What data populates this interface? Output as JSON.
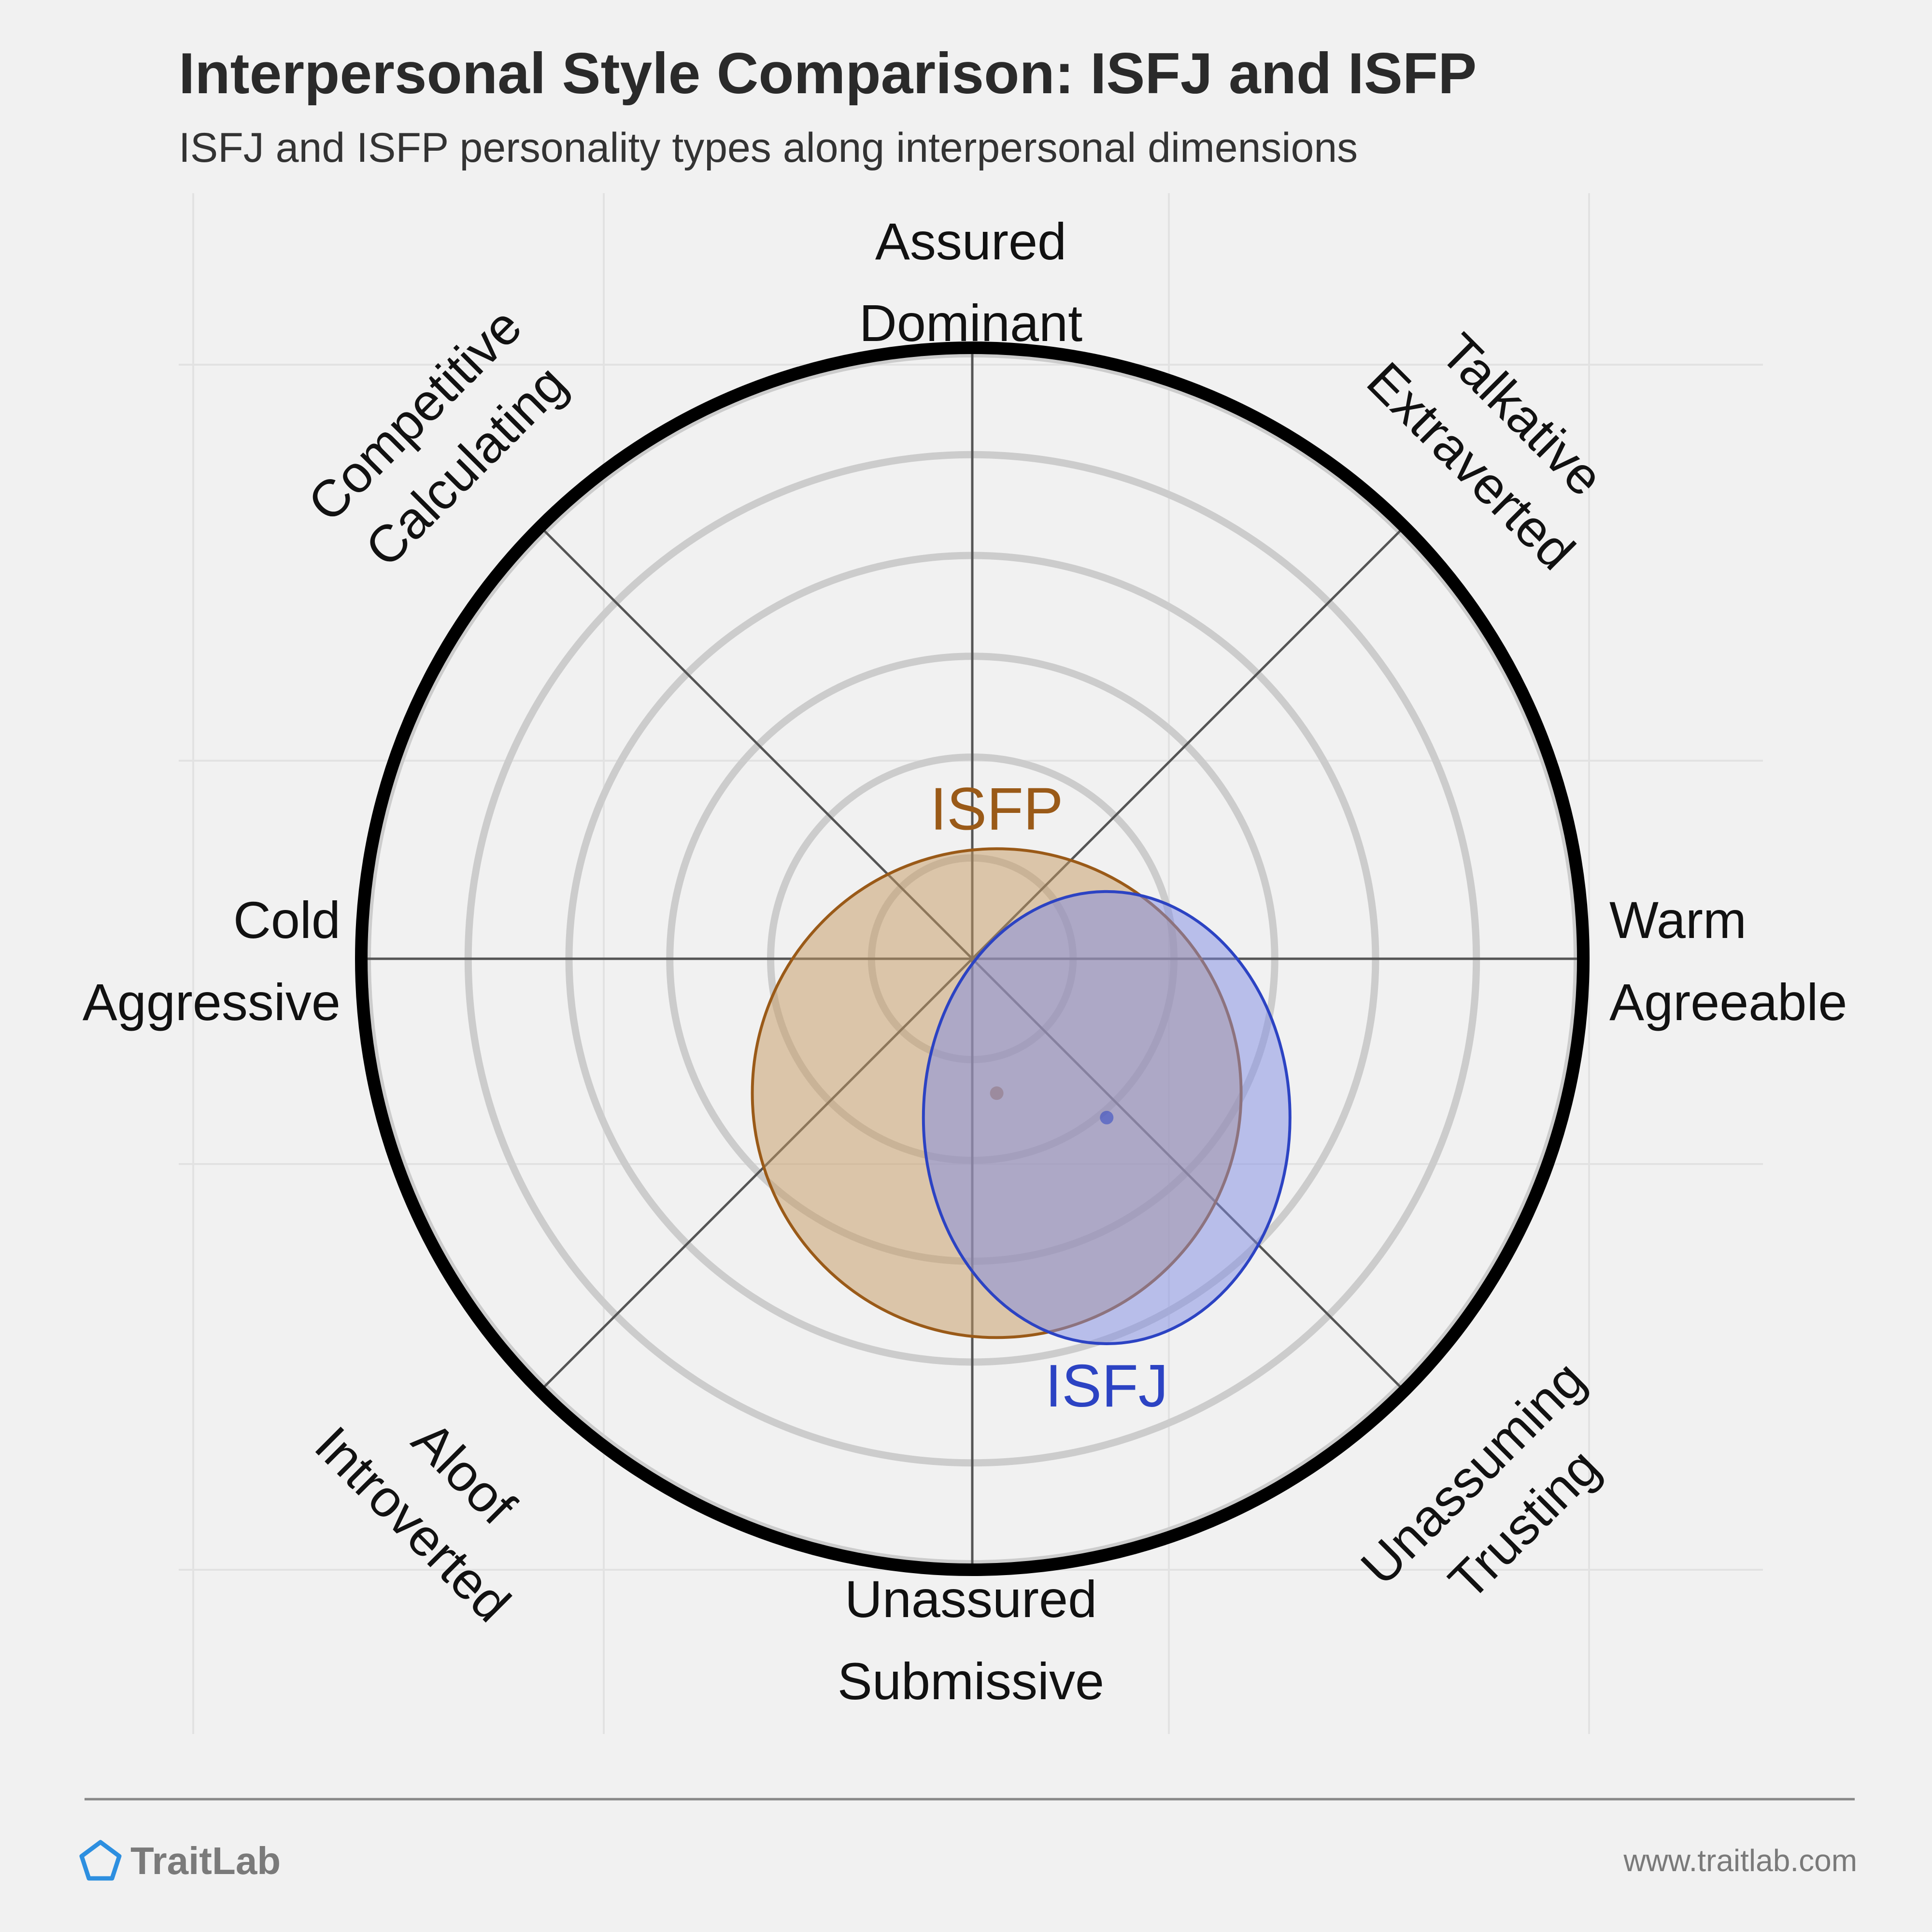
{
  "header": {
    "title": "Interpersonal Style Comparison: ISFJ and ISFP",
    "subtitle": "ISFJ and ISFP personality types along interpersonal dimensions"
  },
  "chart_data": {
    "type": "scatter",
    "subtype": "interpersonal-circumplex",
    "axes": {
      "x": {
        "min": -1,
        "max": 1,
        "negative_label": [
          "Cold",
          "Aggressive"
        ],
        "positive_label": [
          "Warm",
          "Agreeable"
        ]
      },
      "y": {
        "min": -1,
        "max": 1,
        "positive_label": [
          "Assured",
          "Dominant"
        ],
        "negative_label": [
          "Unassured",
          "Submissive"
        ]
      }
    },
    "diagonal_labels": {
      "top_left": [
        "Competitive",
        "Calculating"
      ],
      "top_right": [
        "Talkative",
        "Extraverted"
      ],
      "bottom_left": [
        "Aloof",
        "Introverted"
      ],
      "bottom_right": [
        "Unassuming",
        "Trusting"
      ]
    },
    "rings": 6,
    "grid": true,
    "series": [
      {
        "name": "ISFP",
        "x": 0.04,
        "y": -0.22,
        "spread_x": 0.4,
        "spread_y": 0.4,
        "color": "#9a5a18",
        "fill": "#c69a62"
      },
      {
        "name": "ISFJ",
        "x": 0.22,
        "y": -0.26,
        "spread_x": 0.3,
        "spread_y": 0.37,
        "color": "#2c43c3",
        "fill": "#7f8ce3"
      }
    ]
  },
  "footer": {
    "brand": "TraitLab",
    "url": "www.traitlab.com",
    "brand_color": "#2d8fe0"
  }
}
